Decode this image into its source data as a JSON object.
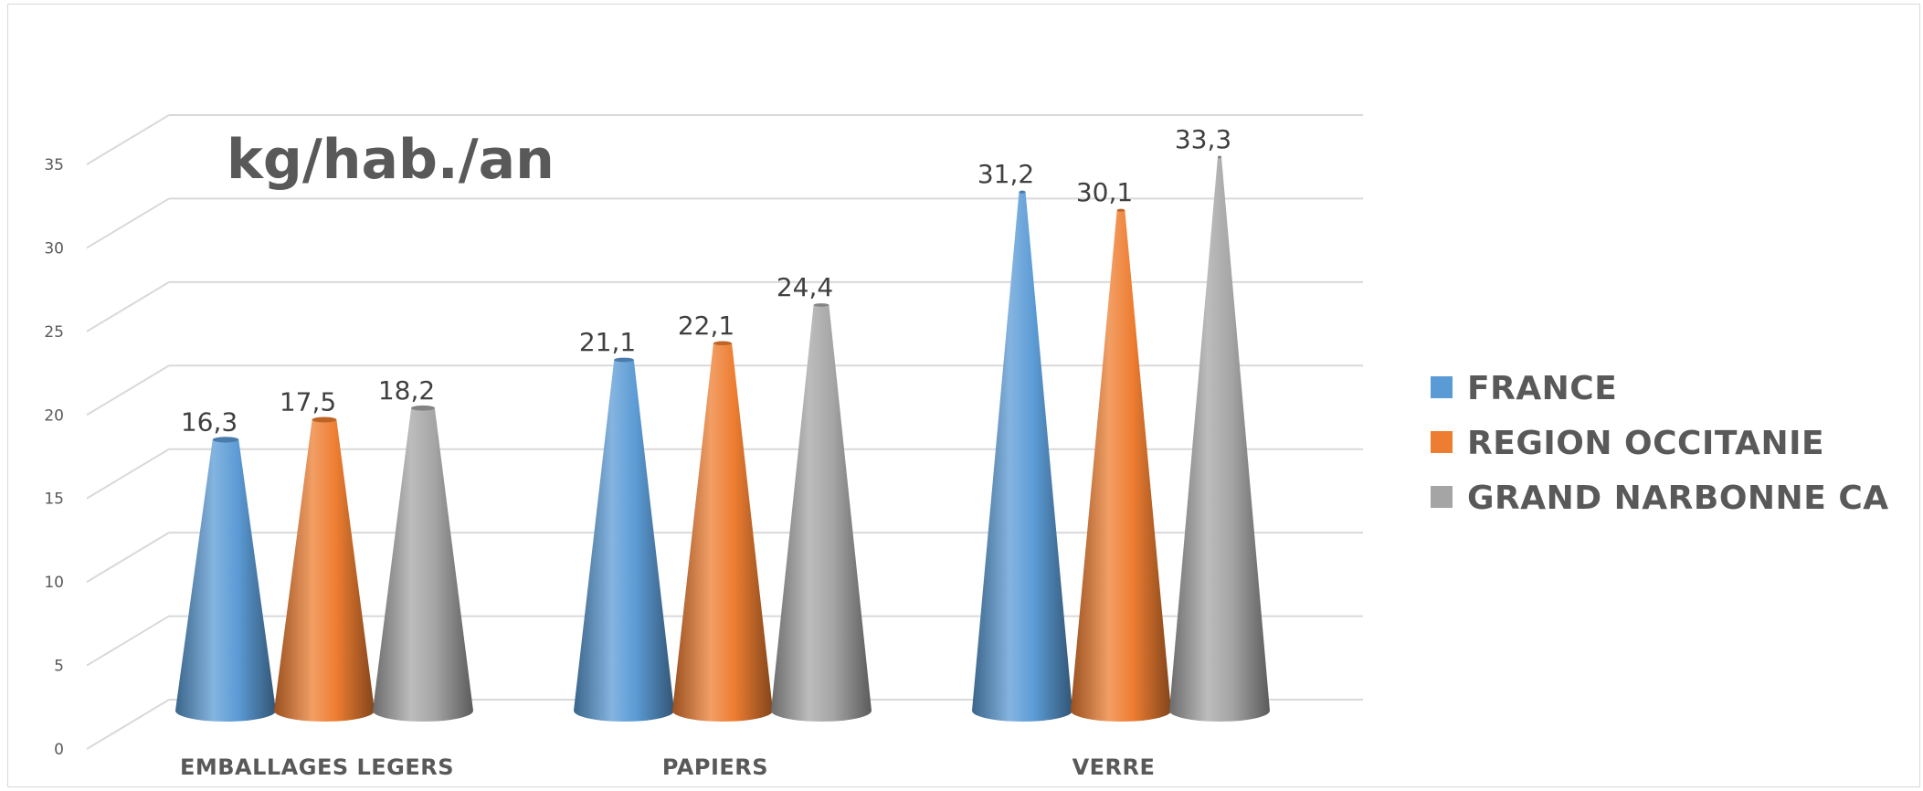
{
  "chart_data": {
    "type": "bar",
    "bar_shape": "cone-3d",
    "annotation": "kg/hab./an",
    "categories": [
      "EMBALLAGES LEGERS",
      "PAPIERS",
      "VERRE"
    ],
    "series": [
      {
        "name": "FRANCE",
        "values": [
          16.3,
          21.1,
          31.2
        ],
        "labels": [
          "16,3",
          "21,1",
          "31,2"
        ],
        "color": "#5b9bd5"
      },
      {
        "name": "REGION OCCITANIE",
        "values": [
          17.5,
          22.1,
          30.1
        ],
        "labels": [
          "17,5",
          "22,1",
          "30,1"
        ],
        "color": "#ed7d31"
      },
      {
        "name": "GRAND NARBONNE CA",
        "values": [
          18.2,
          24.4,
          33.3
        ],
        "labels": [
          "18,2",
          "24,4",
          "33,3"
        ],
        "color": "#a5a5a5"
      }
    ],
    "y_ticks": [
      "0",
      "5",
      "10",
      "15",
      "20",
      "25",
      "30",
      "35"
    ],
    "ylim": [
      0,
      35
    ],
    "grid": true,
    "legend_position": "right"
  }
}
